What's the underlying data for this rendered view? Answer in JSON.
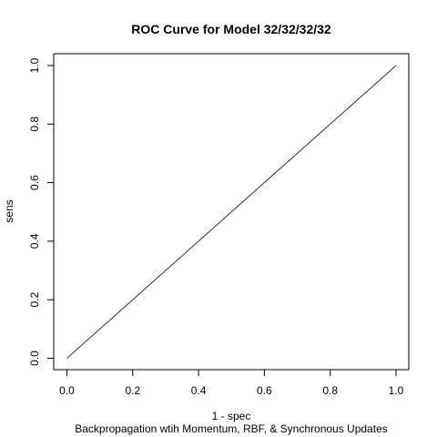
{
  "chart_data": {
    "type": "line",
    "title": "ROC Curve for Model 32/32/32/32",
    "xlabel": "1 - spec",
    "ylabel": "sens",
    "subtitle": "Backpropagation wtih Momentum, RBF, & Synchronous Updates",
    "xlim": [
      0.0,
      1.0
    ],
    "ylim": [
      0.0,
      1.0
    ],
    "x_ticks": [
      "0.0",
      "0.2",
      "0.4",
      "0.6",
      "0.8",
      "1.0"
    ],
    "y_ticks": [
      "0.0",
      "0.2",
      "0.4",
      "0.6",
      "0.8",
      "1.0"
    ],
    "grid": false,
    "series": [
      {
        "x": [
          0.0,
          1.0
        ],
        "y": [
          0.0,
          1.0
        ],
        "color": "#333333"
      }
    ]
  }
}
